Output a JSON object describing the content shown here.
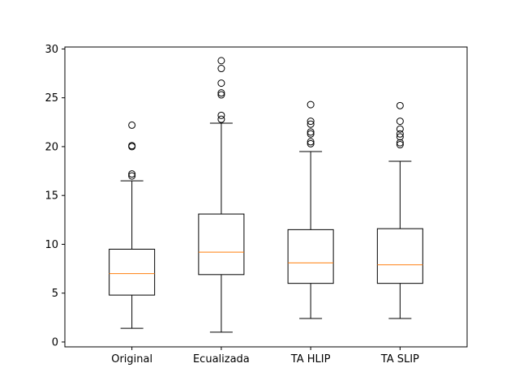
{
  "chart_data": {
    "type": "box",
    "title": "",
    "xlabel": "",
    "ylabel": "",
    "ylim": [
      -0.5,
      30.2
    ],
    "yticks": [
      0,
      5,
      10,
      15,
      20,
      25,
      30
    ],
    "ytick_labels": [
      "0",
      "5",
      "10",
      "15",
      "20",
      "25",
      "30"
    ],
    "grid": false,
    "categories": [
      "Original",
      "Ecualizada",
      "TA HLIP",
      "TA SLIP"
    ],
    "boxes": [
      {
        "category": "Original",
        "whisker_low": 1.4,
        "q1": 4.8,
        "median": 7.0,
        "q3": 9.5,
        "whisker_high": 16.5,
        "outliers": [
          17.0,
          17.2,
          20.0,
          20.1,
          22.2
        ]
      },
      {
        "category": "Ecualizada",
        "whisker_low": 1.0,
        "q1": 6.9,
        "median": 9.2,
        "q3": 13.1,
        "whisker_high": 22.4,
        "outliers": [
          22.8,
          23.2,
          25.3,
          25.5,
          26.5,
          28.0,
          28.8
        ]
      },
      {
        "category": "TA HLIP",
        "whisker_low": 2.4,
        "q1": 6.0,
        "median": 8.1,
        "q3": 11.5,
        "whisker_high": 19.5,
        "outliers": [
          20.3,
          20.5,
          21.3,
          21.5,
          22.3,
          22.6,
          24.3
        ]
      },
      {
        "category": "TA SLIP",
        "whisker_low": 2.4,
        "q1": 6.0,
        "median": 7.9,
        "q3": 11.6,
        "whisker_high": 18.5,
        "outliers": [
          20.2,
          20.4,
          21.0,
          21.3,
          21.8,
          22.6,
          24.2
        ]
      }
    ],
    "colors": {
      "box": "#000000",
      "median": "#ff7f0e",
      "outlier": "#000000",
      "axes": "#000000"
    }
  }
}
